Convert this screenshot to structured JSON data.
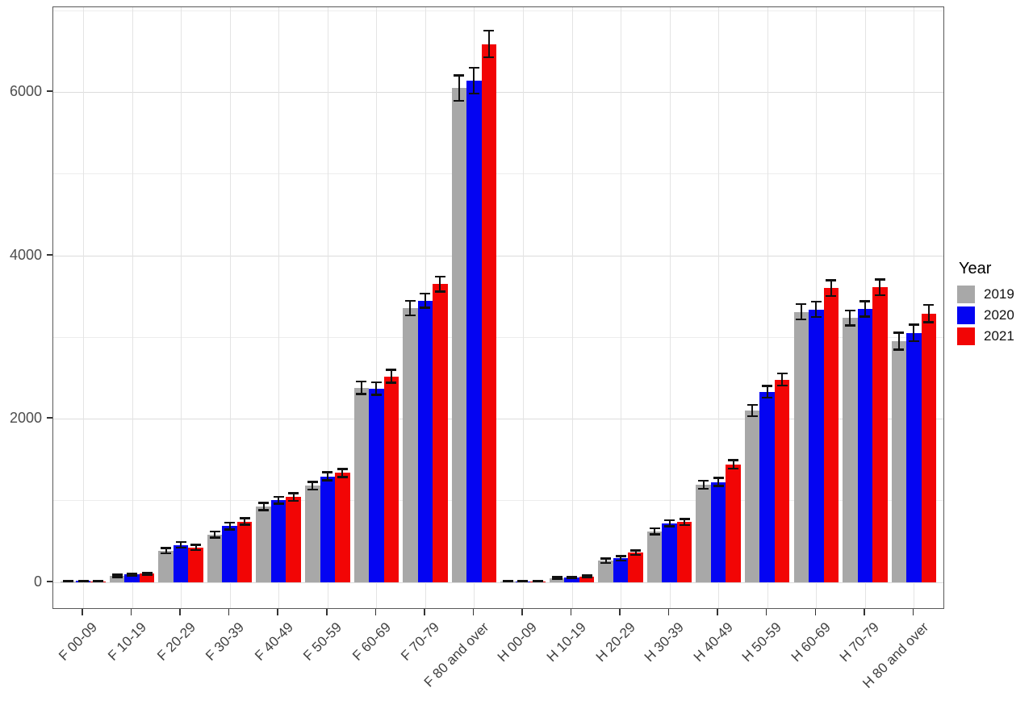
{
  "chart_data": {
    "type": "bar",
    "title": "",
    "xlabel": "",
    "ylabel": "",
    "categories": [
      "F 00-09",
      "F 10-19",
      "F 20-29",
      "F 30-39",
      "F 40-49",
      "F 50-59",
      "F 60-69",
      "F 70-79",
      "F 80 and over",
      "H 00-09",
      "H 10-19",
      "H 20-29",
      "H 30-39",
      "H 40-49",
      "H 50-59",
      "H 60-69",
      "H 70-79",
      "H 80 and over"
    ],
    "series": [
      {
        "name": "2019",
        "color": "#a8a8a8",
        "values": [
          10,
          75,
          385,
          580,
          925,
          1180,
          2380,
          3355,
          6050,
          8,
          50,
          260,
          620,
          1190,
          2100,
          3310,
          3235,
          2950
        ],
        "errors": [
          8,
          15,
          35,
          40,
          45,
          50,
          80,
          90,
          160,
          6,
          12,
          28,
          38,
          52,
          70,
          95,
          95,
          105
        ]
      },
      {
        "name": "2020",
        "color": "#0404f2",
        "values": [
          12,
          90,
          455,
          685,
          1000,
          1295,
          2370,
          3445,
          6140,
          10,
          58,
          290,
          720,
          1225,
          2330,
          3340,
          3345,
          3050
        ],
        "errors": [
          8,
          15,
          35,
          42,
          45,
          52,
          80,
          90,
          160,
          6,
          12,
          28,
          40,
          52,
          72,
          95,
          95,
          105
        ]
      },
      {
        "name": "2021",
        "color": "#f20505",
        "values": [
          10,
          102,
          425,
          740,
          1040,
          1335,
          2520,
          3650,
          6590,
          10,
          68,
          360,
          735,
          1440,
          2480,
          3600,
          3610,
          3290
        ],
        "errors": [
          8,
          16,
          35,
          42,
          48,
          52,
          82,
          95,
          165,
          6,
          13,
          30,
          40,
          55,
          75,
          100,
          100,
          108
        ]
      }
    ],
    "error_bars": true,
    "yticks": [
      0,
      2000,
      4000,
      6000
    ],
    "minor_yticks": [
      1000,
      3000,
      5000,
      7000
    ],
    "ylim": [
      -340,
      7040
    ],
    "grid": true,
    "legend": {
      "title": "Year",
      "position": "right"
    }
  }
}
